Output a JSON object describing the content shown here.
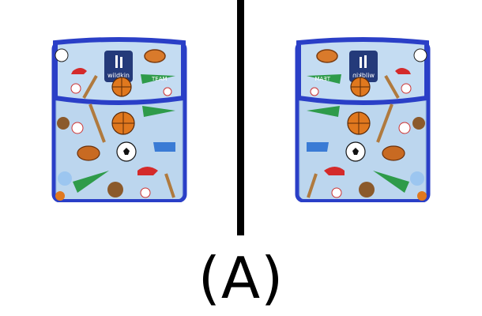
{
  "images": [
    {
      "name": "left",
      "subject": "lunch-bag",
      "brand_label": "wildkin",
      "pattern": "sports",
      "mirrored": false
    },
    {
      "name": "right",
      "subject": "lunch-bag",
      "brand_label": "wildkin",
      "pattern": "sports",
      "mirrored": true
    }
  ],
  "caption": "(A)",
  "colors": {
    "bag_fill": "#b8d4ec",
    "trim": "#2a3fc7",
    "basketball": "#e0781e",
    "pennant": "#2e9b4a",
    "divider": "#000000"
  }
}
